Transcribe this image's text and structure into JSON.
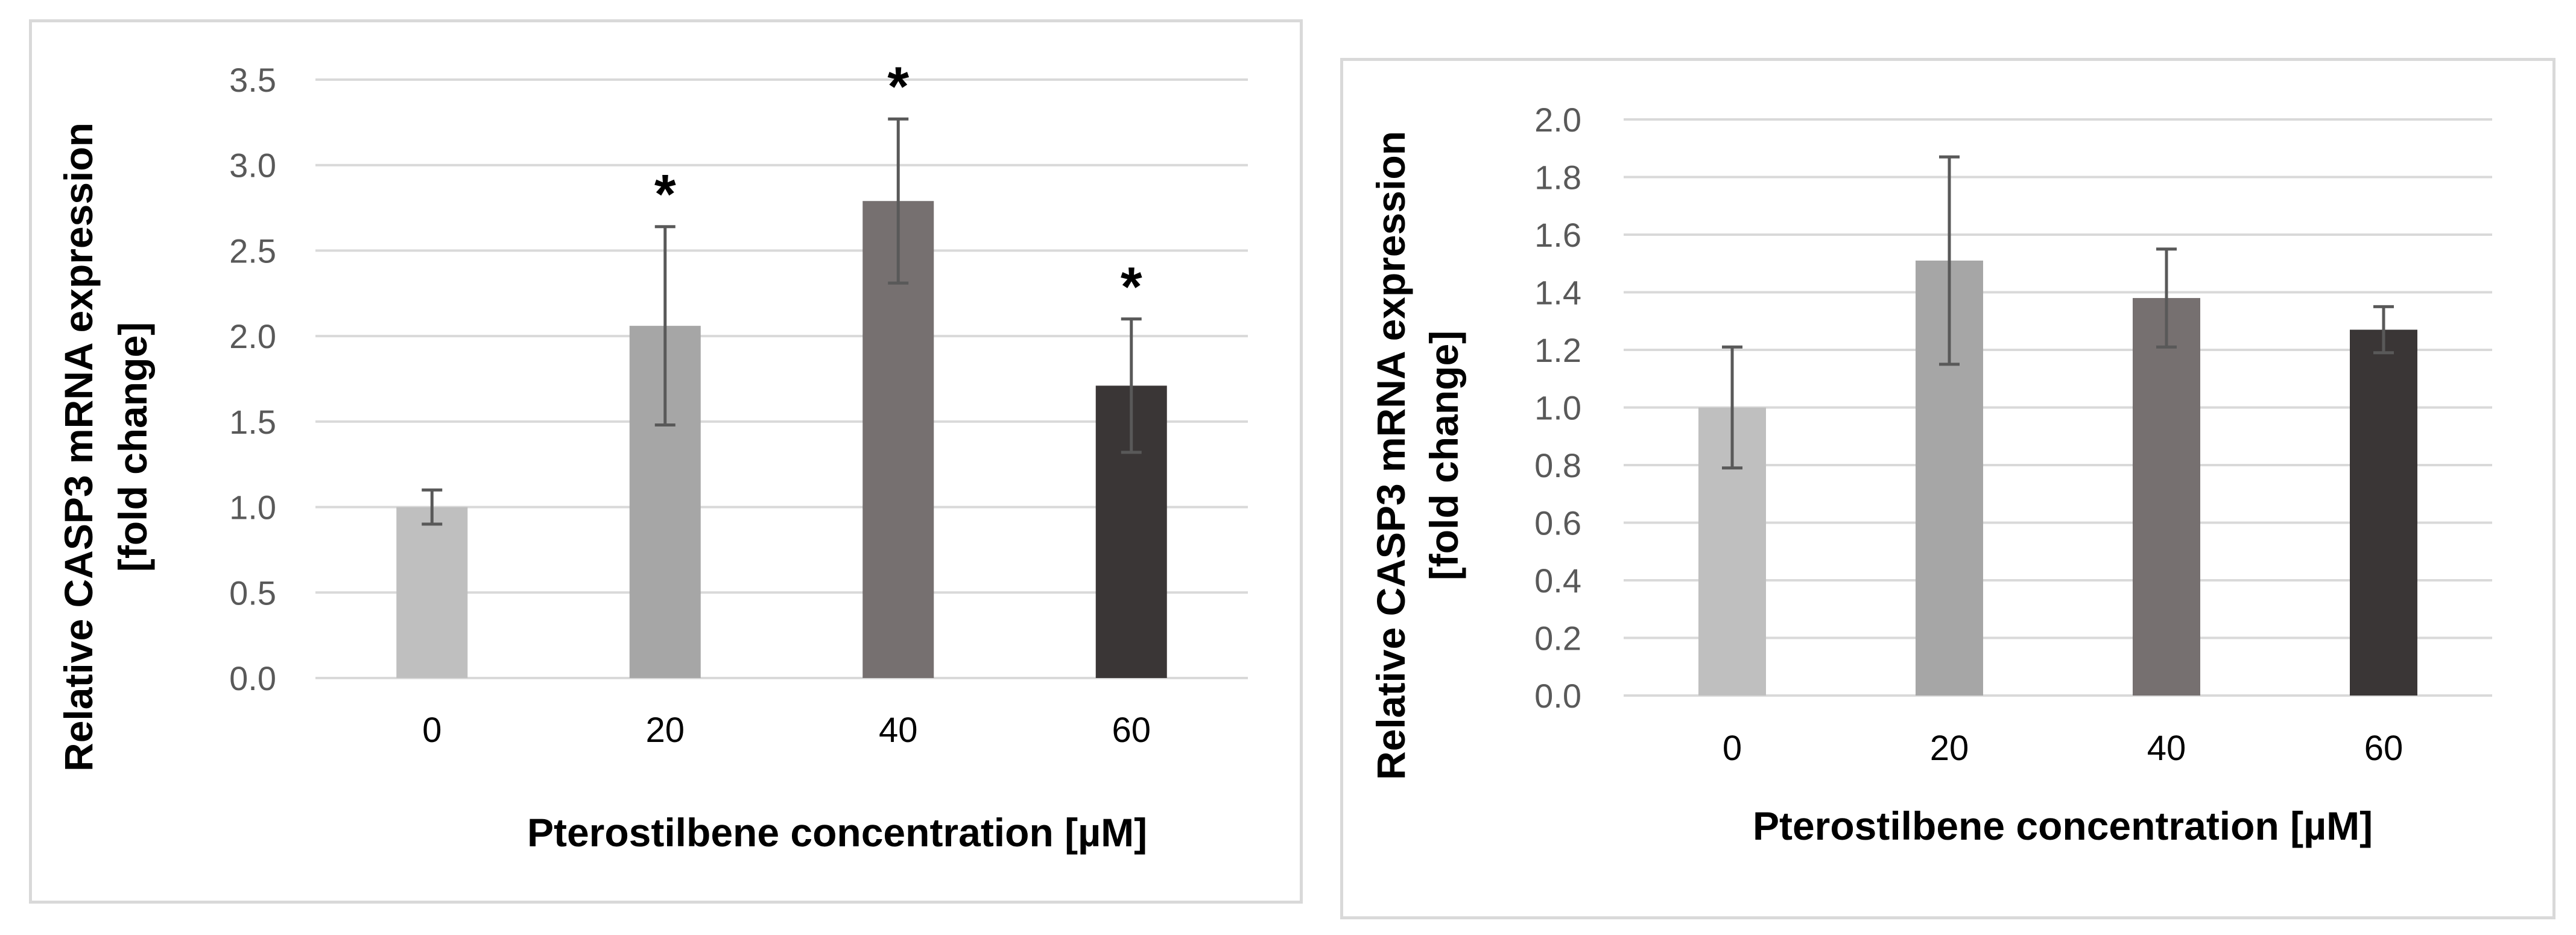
{
  "chart_data": [
    {
      "type": "bar",
      "panel": "left",
      "categories": [
        "0",
        "20",
        "40",
        "60"
      ],
      "values": [
        1.0,
        2.06,
        2.79,
        1.71
      ],
      "errors": [
        0.1,
        0.58,
        0.48,
        0.39
      ],
      "significance": [
        "",
        "*",
        "*",
        "*"
      ],
      "colors": [
        "#bfbfbf",
        "#a6a6a6",
        "#767070",
        "#3a3636"
      ],
      "title": "",
      "xlabel": "Pterostilbene concentration [µM]",
      "ylabel_lines": [
        "Relative CASP3 mRNA expression",
        "[fold change]"
      ],
      "ylim": [
        0,
        3.5
      ],
      "yticks": [
        "0.0",
        "0.5",
        "1.0",
        "1.5",
        "2.0",
        "2.5",
        "3.0",
        "3.5"
      ],
      "grid": true
    },
    {
      "type": "bar",
      "panel": "right",
      "categories": [
        "0",
        "20",
        "40",
        "60"
      ],
      "values": [
        1.0,
        1.51,
        1.38,
        1.27
      ],
      "errors": [
        0.21,
        0.36,
        0.17,
        0.08
      ],
      "significance": [
        "",
        "",
        "",
        ""
      ],
      "colors": [
        "#bfbfbf",
        "#a6a6a6",
        "#767070",
        "#3a3636"
      ],
      "title": "",
      "xlabel": "Pterostilbene concentration [µM]",
      "ylabel_lines": [
        "Relative CASP3 mRNA expression",
        "[fold change]"
      ],
      "ylim": [
        0,
        2.0
      ],
      "yticks": [
        "0.0",
        "0.2",
        "0.4",
        "0.6",
        "0.8",
        "1.0",
        "1.2",
        "1.4",
        "1.6",
        "1.8",
        "2.0"
      ],
      "grid": true
    }
  ]
}
